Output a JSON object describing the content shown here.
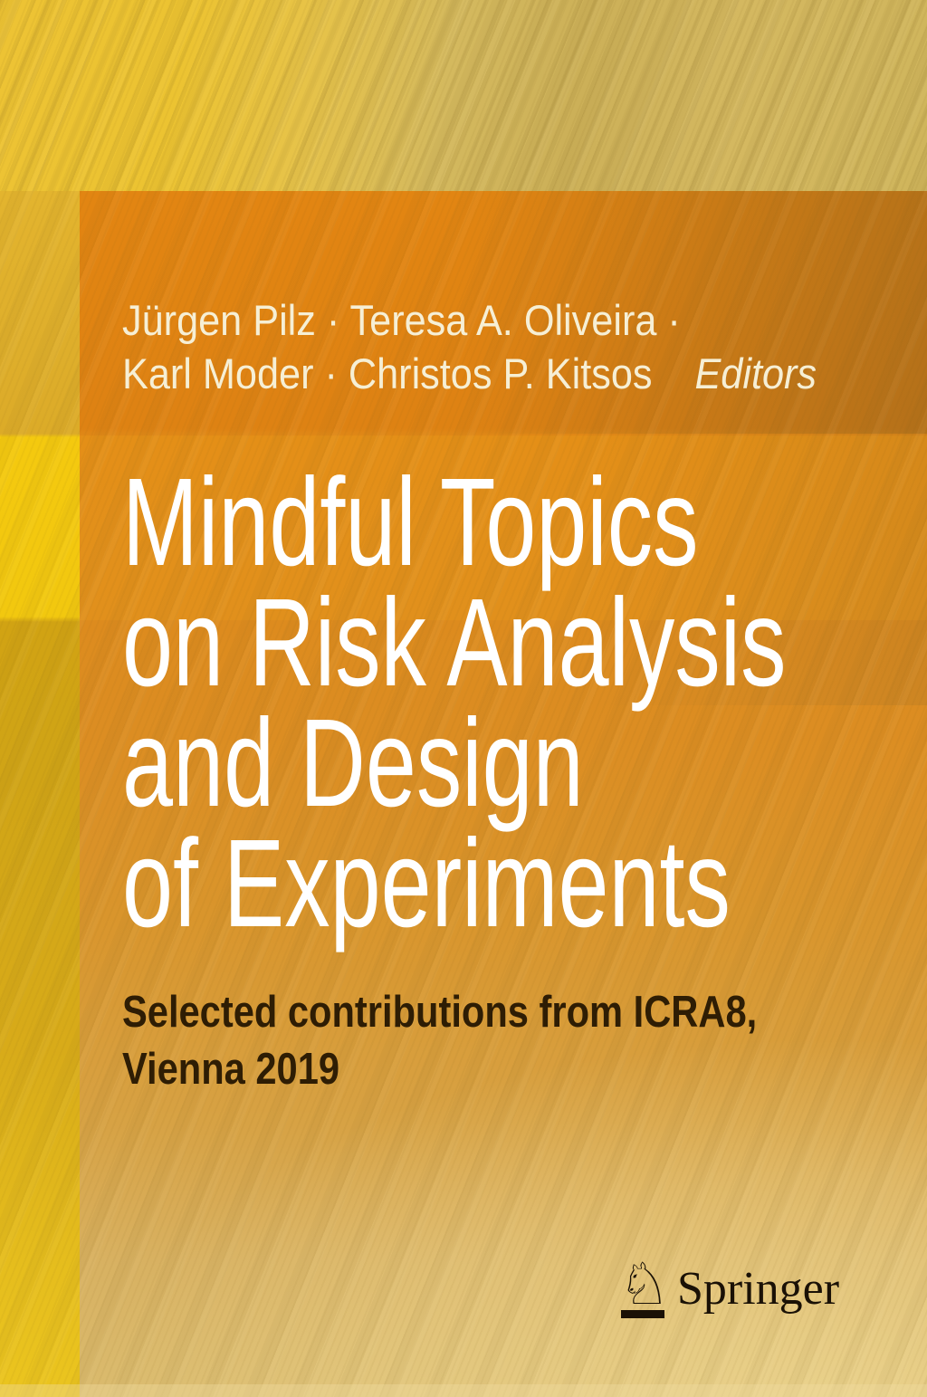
{
  "cover": {
    "editors": {
      "line1": "Jürgen Pilz · Teresa A. Oliveira ·",
      "line2": "Karl Moder · Christos P. Kitsos",
      "label": "Editors"
    },
    "title_lines": [
      "Mindful Topics",
      "on Risk Analysis",
      "and Design",
      "of Experiments"
    ],
    "subtitle_lines": [
      "Selected contributions from ICRA8,",
      "Vienna 2019"
    ],
    "publisher": "Springer",
    "logo": {
      "horse_icon": "♘"
    },
    "colors": {
      "panel_orange": "#e08512",
      "background_gold": "#d4b95e",
      "left_stripe_yellow": "#f4c90f",
      "title_text": "#ffffff",
      "editors_text": "#f6efd5",
      "subtitle_text": "#2e1d04",
      "logo_dark": "#1a1106"
    }
  }
}
